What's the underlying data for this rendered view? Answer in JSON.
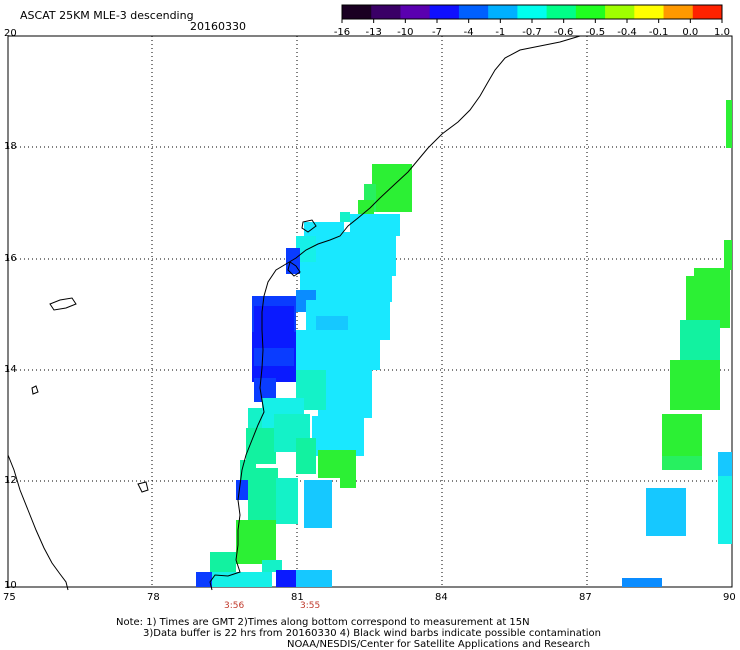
{
  "header": {
    "title": "ASCAT 25KM MLE-3 descending",
    "date": "20160330"
  },
  "colorbar": {
    "labels": [
      "-16",
      "-13",
      "-10",
      "-7",
      "-4",
      "-1",
      "-0.7",
      "-0.6",
      "-0.5",
      "-0.4",
      "-0.1",
      "0.0",
      "1.0"
    ],
    "colors": [
      "#1a0022",
      "#3a0066",
      "#5a00b0",
      "#1010ff",
      "#0060ff",
      "#00b0ff",
      "#00ffee",
      "#00ff88",
      "#20ff20",
      "#a0ff00",
      "#ffff00",
      "#ff9900",
      "#ff2200"
    ]
  },
  "map": {
    "lat_labels": [
      "20",
      "18",
      "16",
      "14",
      "12",
      "10"
    ],
    "lon_labels": [
      "75",
      "78",
      "81",
      "84",
      "87",
      "90"
    ],
    "lat_range": [
      10,
      20
    ],
    "lon_range": [
      75,
      90
    ],
    "grid": "dotted"
  },
  "times": {
    "left": "3:56",
    "right": "3:55"
  },
  "notes": {
    "line1": "Note: 1) Times are GMT 2)Times along bottom correspond to measurement at 15N",
    "line2": "3)Data buffer is 22 hrs from 20160330 4) Black wind barbs indicate possible contamination",
    "line3": "NOAA/NESDIS/Center for Satellite Applications and Research"
  },
  "swath_colors": {
    "deep_blue": "#0a1aff",
    "blue": "#0a3cff",
    "mid_blue": "#0a8cff",
    "sky": "#16c8ff",
    "cyan": "#19e8ff",
    "aqua": "#16f0e8",
    "seafoam": "#14f2c8",
    "mint": "#12f2a0",
    "lime": "#27f060",
    "green": "#2cf034"
  }
}
